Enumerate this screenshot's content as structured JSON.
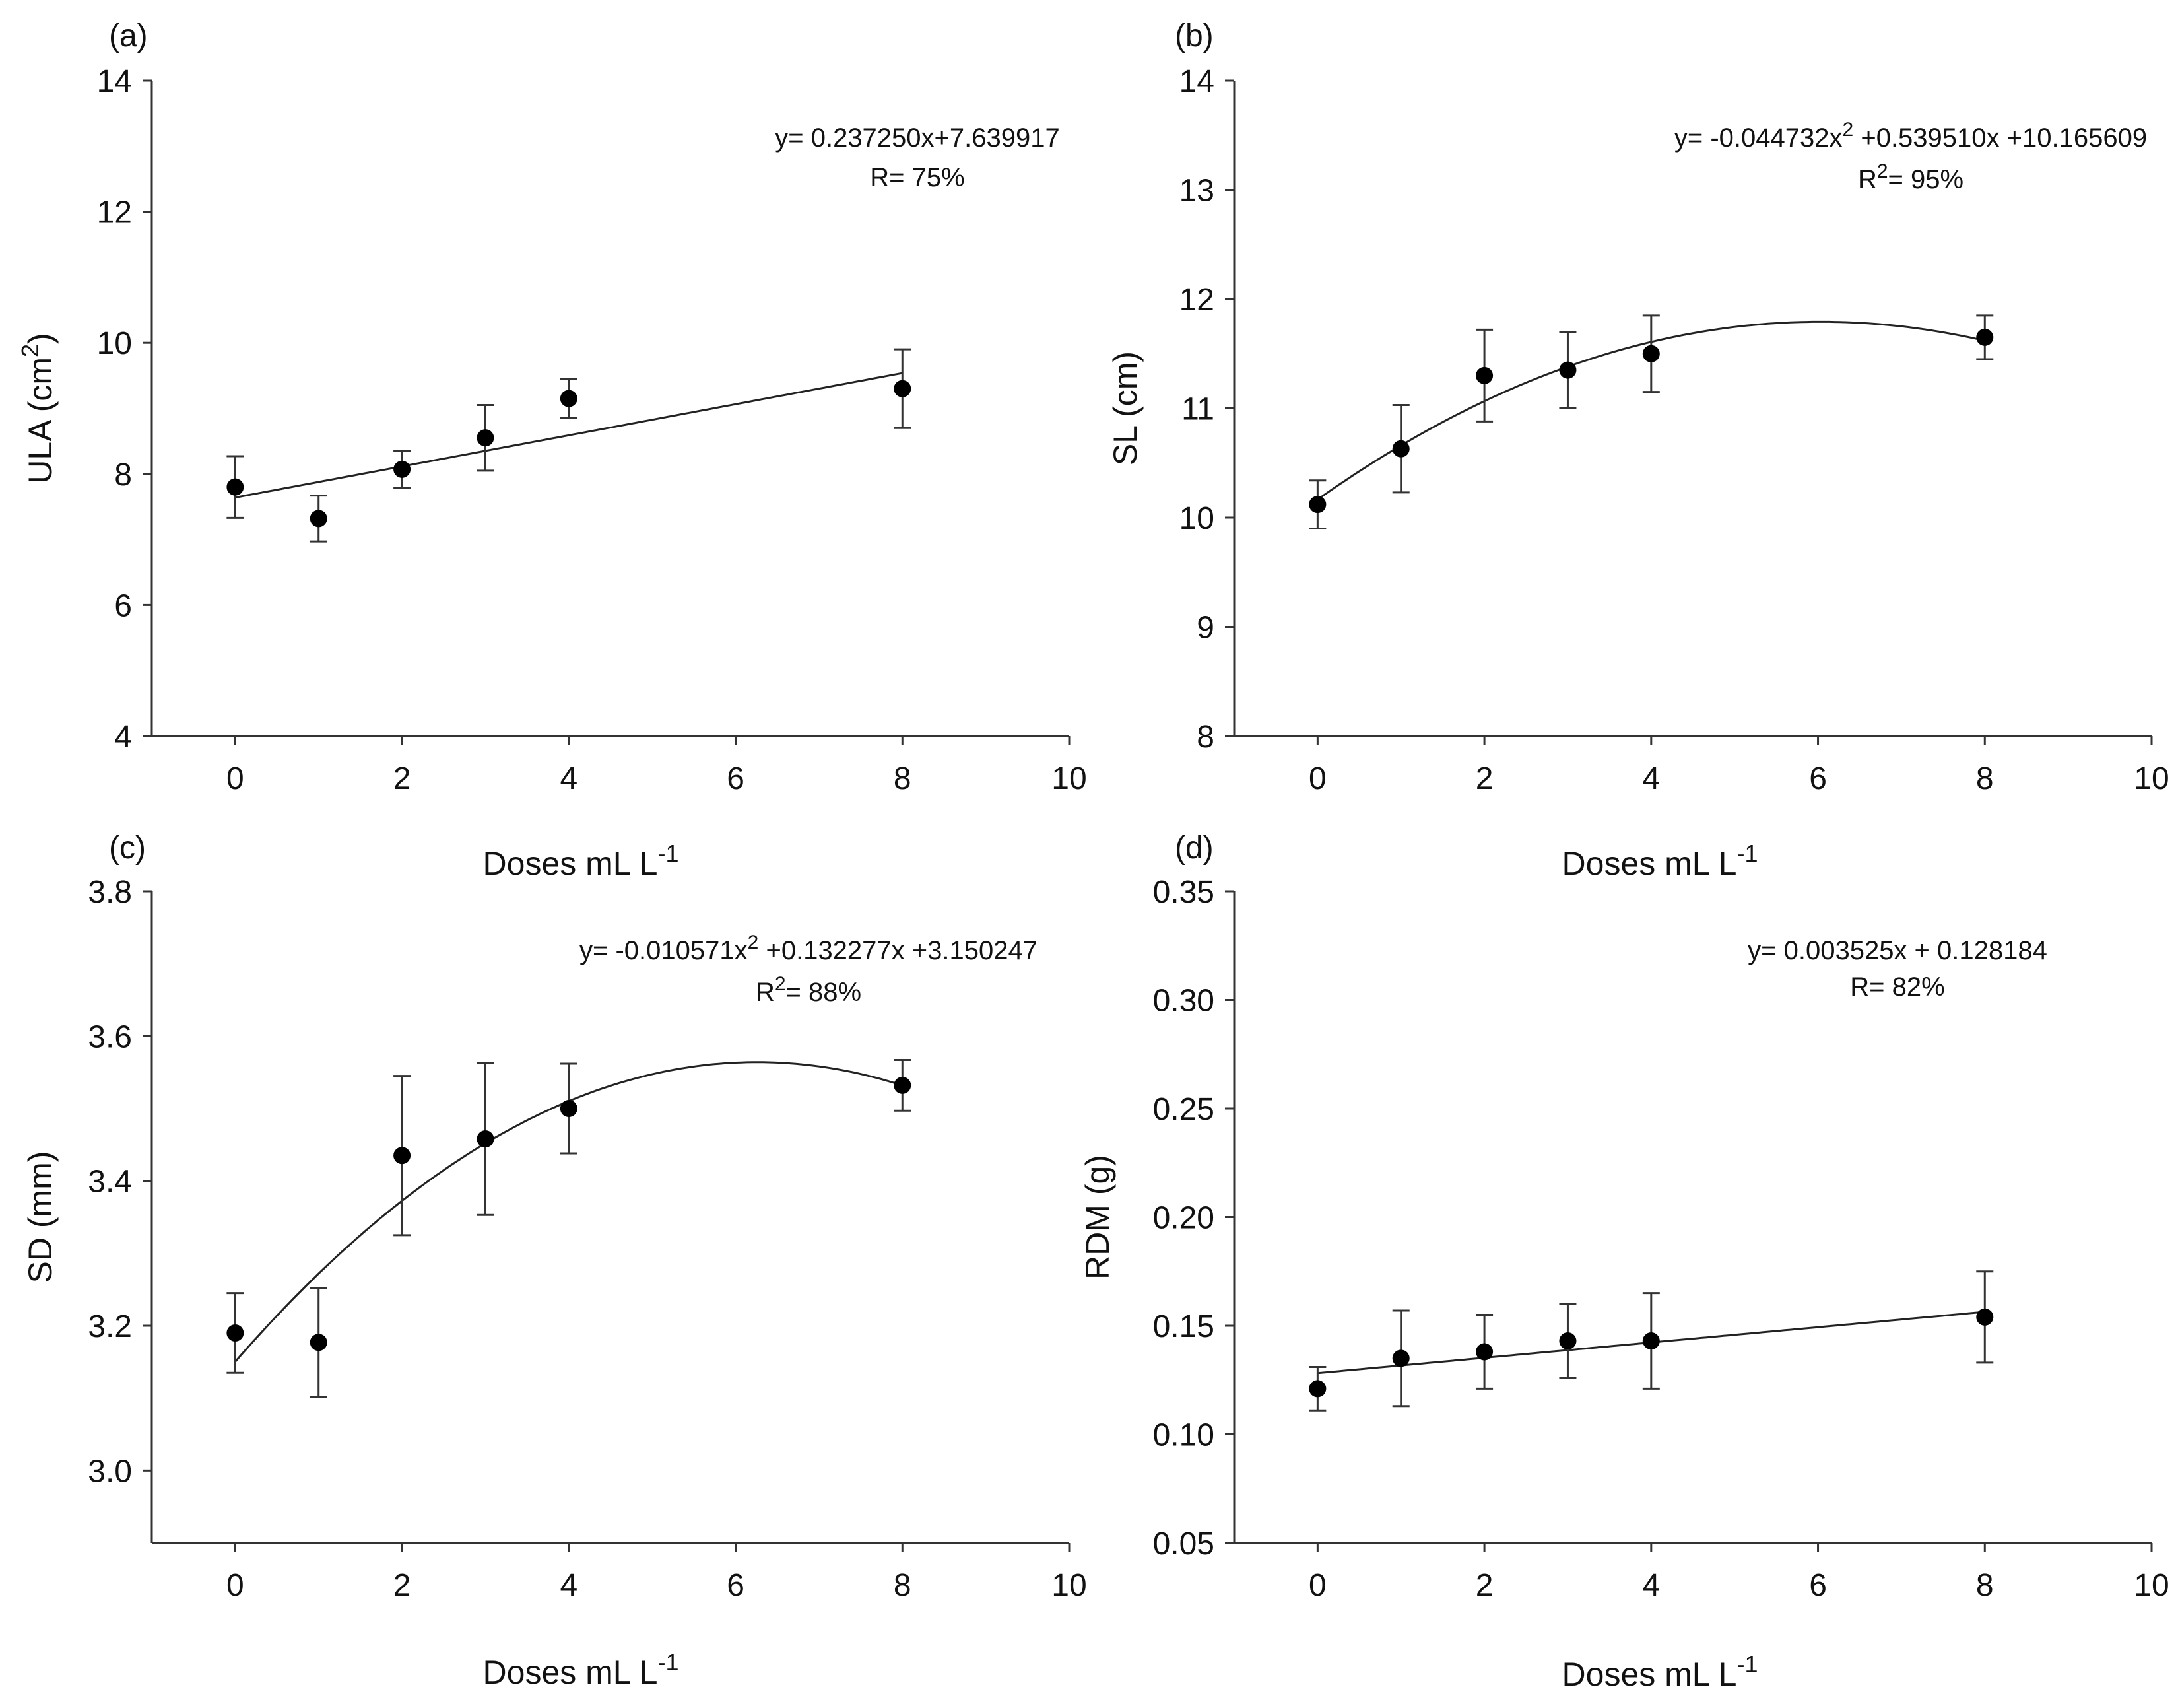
{
  "chart_data": [
    {
      "type": "scatter",
      "panel_label": "(a)",
      "ylabel_main": "ULA (cm",
      "ylabel_sup": "2",
      "ylabel_end": ")",
      "xlabel_main": "Doses mL L",
      "xlabel_sup": "-1",
      "xlim": [
        -1,
        10
      ],
      "ylim": [
        4,
        14
      ],
      "xticks": [
        0,
        2,
        4,
        6,
        8,
        10
      ],
      "yticks": [
        4,
        6,
        8,
        10,
        12,
        14
      ],
      "tick_decimals": 0,
      "x": [
        0,
        1,
        2,
        3,
        4,
        8
      ],
      "y": [
        7.8,
        7.32,
        8.07,
        8.55,
        9.15,
        9.3
      ],
      "err": [
        0.47,
        0.35,
        0.28,
        0.5,
        0.3,
        0.6
      ],
      "fit": {
        "model": "linear",
        "coef": [
          7.639917,
          0.23725
        ],
        "x_range": [
          0,
          8
        ]
      },
      "equation_lines": [
        {
          "parts": [
            {
              "text": "y= 0.237250x+7.639917"
            }
          ]
        },
        {
          "parts": [
            {
              "text": "R= 75%"
            }
          ]
        }
      ]
    },
    {
      "type": "scatter",
      "panel_label": "(b)",
      "ylabel_main": "SL (cm)",
      "ylabel_sup": "",
      "ylabel_end": "",
      "xlabel_main": "Doses mL L",
      "xlabel_sup": "-1",
      "xlim": [
        -1,
        10
      ],
      "ylim": [
        8,
        14
      ],
      "xticks": [
        0,
        2,
        4,
        6,
        8,
        10
      ],
      "yticks": [
        8,
        9,
        10,
        11,
        12,
        13,
        14
      ],
      "tick_decimals": 0,
      "x": [
        0,
        1,
        2,
        3,
        4,
        8
      ],
      "y": [
        10.12,
        10.63,
        11.3,
        11.35,
        11.5,
        11.65
      ],
      "err": [
        0.22,
        0.4,
        0.42,
        0.35,
        0.35,
        0.2
      ],
      "fit": {
        "model": "quadratic",
        "coef": [
          10.165609,
          0.53951,
          -0.044732
        ],
        "x_range": [
          0,
          8
        ]
      },
      "equation_lines": [
        {
          "parts": [
            {
              "text": "y= -0.044732x"
            },
            {
              "text": "2",
              "sup": true
            },
            {
              "text": " +0.539510x +10.165609"
            }
          ]
        },
        {
          "parts": [
            {
              "text": "R"
            },
            {
              "text": "2",
              "sup": true
            },
            {
              "text": "= 95%"
            }
          ]
        }
      ]
    },
    {
      "type": "scatter",
      "panel_label": "(c)",
      "ylabel_main": "SD (mm)",
      "ylabel_sup": "",
      "ylabel_end": "",
      "xlabel_main": "Doses mL L",
      "xlabel_sup": "-1",
      "xlim": [
        -1,
        10
      ],
      "ylim": [
        2.9,
        3.8
      ],
      "xticks": [
        0,
        2,
        4,
        6,
        8,
        10
      ],
      "yticks": [
        3.0,
        3.2,
        3.4,
        3.6,
        3.8
      ],
      "tick_decimals": 1,
      "x": [
        0,
        1,
        2,
        3,
        4,
        8
      ],
      "y": [
        3.19,
        3.177,
        3.435,
        3.458,
        3.5,
        3.532
      ],
      "err": [
        0.055,
        0.075,
        0.11,
        0.105,
        0.062,
        0.035
      ],
      "fit": {
        "model": "quadratic",
        "coef": [
          3.150247,
          0.132277,
          -0.010571
        ],
        "x_range": [
          0,
          8
        ]
      },
      "equation_lines": [
        {
          "parts": [
            {
              "text": "y= -0.010571x"
            },
            {
              "text": "2",
              "sup": true
            },
            {
              "text": " +0.132277x +3.150247"
            }
          ]
        },
        {
          "parts": [
            {
              "text": "R"
            },
            {
              "text": "2",
              "sup": true
            },
            {
              "text": "= 88%"
            }
          ]
        }
      ]
    },
    {
      "type": "scatter",
      "panel_label": "(d)",
      "ylabel_main": "RDM (g)",
      "ylabel_sup": "",
      "ylabel_end": "",
      "xlabel_main": "Doses mL L",
      "xlabel_sup": "-1",
      "xlim": [
        -1,
        10
      ],
      "ylim": [
        0.05,
        0.35
      ],
      "xticks": [
        0,
        2,
        4,
        6,
        8,
        10
      ],
      "yticks": [
        0.05,
        0.1,
        0.15,
        0.2,
        0.25,
        0.3,
        0.35
      ],
      "tick_decimals": 2,
      "x": [
        0,
        1,
        2,
        3,
        4,
        8
      ],
      "y": [
        0.121,
        0.135,
        0.138,
        0.143,
        0.143,
        0.154
      ],
      "err": [
        0.01,
        0.022,
        0.017,
        0.017,
        0.022,
        0.021
      ],
      "fit": {
        "model": "linear",
        "coef": [
          0.128184,
          0.003525
        ],
        "x_range": [
          0,
          8
        ]
      },
      "equation_lines": [
        {
          "parts": [
            {
              "text": "y= 0.003525x + 0.128184"
            }
          ]
        },
        {
          "parts": [
            {
              "text": "R= 82%"
            }
          ]
        }
      ]
    }
  ]
}
